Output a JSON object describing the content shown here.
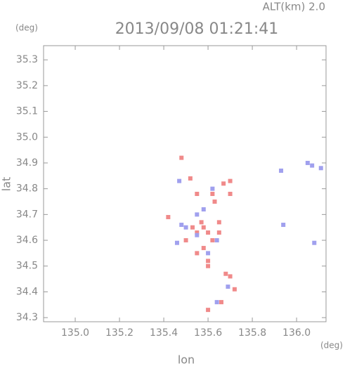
{
  "chart_data": {
    "type": "scatter",
    "title": "2013/09/08 01:21:41",
    "subtitle": "ALT(km) 2.0",
    "y_unit": "(deg)",
    "x_unit": "(deg)",
    "x_label": "lon",
    "y_label": "lat",
    "xlim": [
      134.857,
      136.133
    ],
    "ylim": [
      34.284,
      35.355
    ],
    "xticks": [
      {
        "value": 135.0,
        "label": "135.0"
      },
      {
        "value": 135.2,
        "label": "135.2"
      },
      {
        "value": 135.4,
        "label": "135.4"
      },
      {
        "value": 135.6,
        "label": "135.6"
      },
      {
        "value": 135.8,
        "label": "135.8"
      },
      {
        "value": 136.0,
        "label": "136.0"
      }
    ],
    "yticks": [
      {
        "value": 34.3,
        "label": "34.3"
      },
      {
        "value": 34.4,
        "label": "34.4"
      },
      {
        "value": 34.5,
        "label": "34.5"
      },
      {
        "value": 34.6,
        "label": "34.6"
      },
      {
        "value": 34.7,
        "label": "34.7"
      },
      {
        "value": 34.8,
        "label": "34.8"
      },
      {
        "value": 34.9,
        "label": "34.9"
      },
      {
        "value": 35.0,
        "label": "35.0"
      },
      {
        "value": 35.1,
        "label": "35.1"
      },
      {
        "value": 35.2,
        "label": "35.2"
      },
      {
        "value": 35.3,
        "label": "35.3"
      }
    ],
    "series": [
      {
        "color": "#f08a8a",
        "x": [
          135.48,
          135.52,
          135.55,
          135.62,
          135.67,
          135.7,
          135.57,
          135.58,
          135.6,
          135.55,
          135.62,
          135.58,
          135.55,
          135.6,
          135.6,
          135.68,
          135.7,
          135.72,
          135.66,
          135.6,
          135.53,
          135.65,
          135.5,
          135.65,
          135.42,
          135.63,
          135.7
        ],
        "y": [
          34.92,
          34.84,
          34.78,
          34.78,
          34.82,
          34.83,
          34.67,
          34.65,
          34.63,
          34.63,
          34.6,
          34.57,
          34.55,
          34.52,
          34.5,
          34.47,
          34.46,
          34.41,
          34.36,
          34.33,
          34.65,
          34.67,
          34.6,
          34.63,
          34.69,
          34.75,
          34.78
        ]
      },
      {
        "color": "#a0a0ee",
        "x": [
          136.07,
          136.11,
          136.05,
          135.93,
          136.08,
          135.47,
          135.62,
          135.5,
          135.55,
          135.48,
          135.6,
          135.64,
          135.46,
          135.69,
          135.64,
          135.55,
          135.58,
          135.94
        ],
        "y": [
          34.89,
          34.88,
          34.9,
          34.87,
          34.59,
          34.83,
          34.8,
          34.65,
          34.7,
          34.66,
          34.55,
          34.6,
          34.59,
          34.42,
          34.36,
          34.62,
          34.72,
          34.66
        ]
      }
    ]
  }
}
